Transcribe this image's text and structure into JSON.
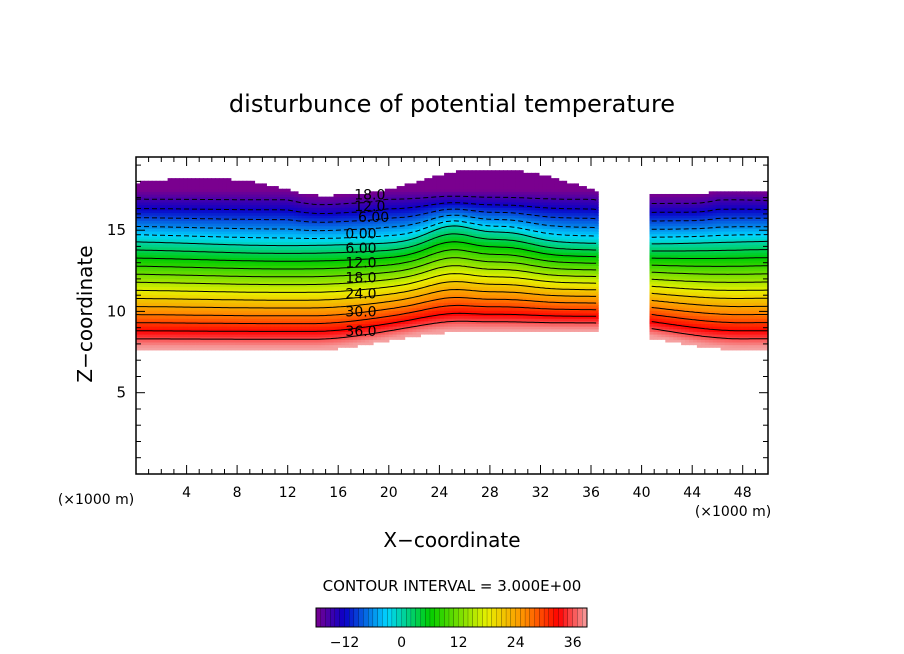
{
  "chart_data": {
    "type": "contour",
    "title": "disturbunce of potential temperature",
    "xlabel": "X−coordinate",
    "ylabel": "Z−coordinate",
    "x_unit_left": "(×1000 m)",
    "x_unit_right": "(×1000 m)",
    "xlim": [
      0,
      50
    ],
    "ylim": [
      0,
      19.5
    ],
    "x_ticks": [
      4,
      8,
      12,
      16,
      20,
      24,
      28,
      32,
      36,
      40,
      44,
      48
    ],
    "y_ticks": [
      5,
      10,
      15
    ],
    "contour_interval_text": "CONTOUR INTERVAL = 3.000E+00",
    "contour_interval": 3.0,
    "contour_labels": [
      {
        "text": "18.0",
        "x": 18.5,
        "z": 17.2
      },
      {
        "text": "12.0",
        "x": 18.5,
        "z": 16.5
      },
      {
        "text": "6.00",
        "x": 18.8,
        "z": 15.8
      },
      {
        "text": "0.00",
        "x": 17.8,
        "z": 14.8
      },
      {
        "text": "6.00",
        "x": 17.8,
        "z": 13.9
      },
      {
        "text": "12.0",
        "x": 17.8,
        "z": 13.0
      },
      {
        "text": "18.0",
        "x": 17.8,
        "z": 12.1
      },
      {
        "text": "24.0",
        "x": 17.8,
        "z": 11.1
      },
      {
        "text": "30.0",
        "x": 17.8,
        "z": 10.0
      },
      {
        "text": "36.0",
        "x": 17.8,
        "z": 8.8
      }
    ],
    "colorbar": {
      "min": -18,
      "max": 39,
      "tick_values": [
        -12,
        0,
        12,
        24,
        36
      ],
      "tick_labels": [
        "−12",
        "0",
        "12",
        "24",
        "36"
      ]
    },
    "colors": {
      "low": "#7a008f",
      "blue": "#0a00c8",
      "cyan": "#00d6ff",
      "green": "#00cc00",
      "yellow": "#e8f000",
      "orange": "#ff8c00",
      "red": "#ff0000",
      "high": "#f5a0a0"
    }
  }
}
